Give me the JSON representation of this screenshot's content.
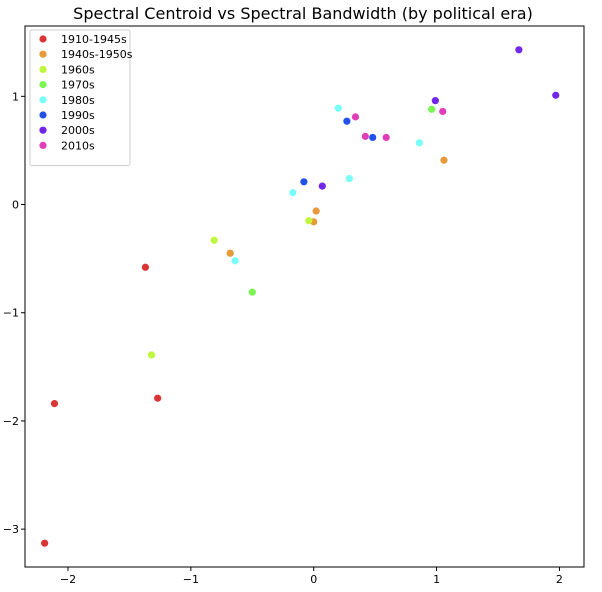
{
  "chart_data": {
    "type": "scatter",
    "title": "Spectral Centroid vs Spectral Bandwidth (by political era)",
    "xlabel": "",
    "ylabel": "",
    "xlim": [
      -2.35,
      2.2
    ],
    "ylim": [
      -3.35,
      1.65
    ],
    "x_ticks": [
      -2,
      -1,
      0,
      1,
      2
    ],
    "y_ticks": [
      -3,
      -2,
      -1,
      0,
      1
    ],
    "grid": false,
    "legend_position": "top-left",
    "series": [
      {
        "name": "1910-1945s",
        "color": "#db3434",
        "points": [
          {
            "x": -1.37,
            "y": -0.58
          },
          {
            "x": -2.11,
            "y": -1.84
          },
          {
            "x": -1.27,
            "y": -1.79
          },
          {
            "x": -2.19,
            "y": -3.13
          }
        ]
      },
      {
        "name": "1940s-1950s",
        "color": "#e8993a",
        "points": [
          {
            "x": 0.02,
            "y": -0.06
          },
          {
            "x": 0.0,
            "y": -0.16
          },
          {
            "x": -0.68,
            "y": -0.45
          },
          {
            "x": 1.06,
            "y": 0.41
          }
        ]
      },
      {
        "name": "1960s",
        "color": "#bff53c",
        "points": [
          {
            "x": -0.04,
            "y": -0.15
          },
          {
            "x": -0.81,
            "y": -0.33
          },
          {
            "x": -1.32,
            "y": -1.39
          }
        ]
      },
      {
        "name": "1970s",
        "color": "#7af552",
        "points": [
          {
            "x": -0.5,
            "y": -0.81
          },
          {
            "x": 0.96,
            "y": 0.88
          }
        ]
      },
      {
        "name": "1980s",
        "color": "#79fdf8",
        "points": [
          {
            "x": 0.2,
            "y": 0.89
          },
          {
            "x": 0.86,
            "y": 0.57
          },
          {
            "x": 0.29,
            "y": 0.24
          },
          {
            "x": -0.17,
            "y": 0.11
          },
          {
            "x": -0.64,
            "y": -0.52
          }
        ]
      },
      {
        "name": "1990s",
        "color": "#2251ea",
        "points": [
          {
            "x": 0.27,
            "y": 0.77
          },
          {
            "x": 0.48,
            "y": 0.62
          },
          {
            "x": -0.08,
            "y": 0.21
          }
        ]
      },
      {
        "name": "2000s",
        "color": "#7126ec",
        "points": [
          {
            "x": 1.67,
            "y": 1.43
          },
          {
            "x": 1.97,
            "y": 1.01
          },
          {
            "x": 0.99,
            "y": 0.96
          },
          {
            "x": 0.07,
            "y": 0.17
          }
        ]
      },
      {
        "name": "2010s",
        "color": "#e03eb8",
        "points": [
          {
            "x": 0.34,
            "y": 0.81
          },
          {
            "x": 1.05,
            "y": 0.86
          },
          {
            "x": 0.42,
            "y": 0.63
          },
          {
            "x": 0.59,
            "y": 0.62
          }
        ]
      }
    ]
  }
}
